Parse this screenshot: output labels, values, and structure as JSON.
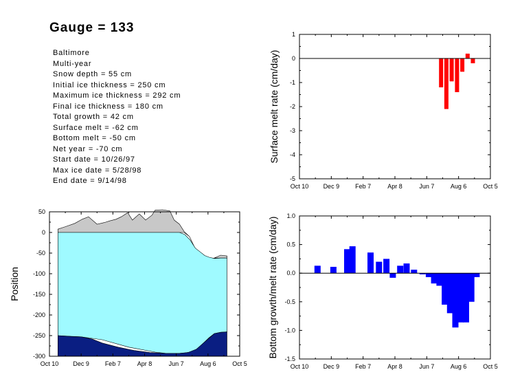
{
  "title": "Gauge = 133",
  "info": [
    "Baltimore",
    "Multi-year",
    "Snow depth = 55 cm",
    "Initial ice thickness = 250 cm",
    "Maximum ice thickness = 292 cm",
    "Final ice thickness = 180 cm",
    "Total growth = 42 cm",
    "Surface melt = -62 cm",
    "Bottom melt = -50 cm",
    "Net year = -70 cm",
    "Start date = 10/26/97",
    "Max ice date = 5/28/98",
    "End date = 9/14/98"
  ],
  "chart_data": [
    {
      "id": "surface-melt",
      "type": "bar",
      "xlabel": "",
      "ylabel": "Surface melt rate (cm/day)",
      "xlim": [
        0,
        360
      ],
      "ylim": [
        -5,
        1
      ],
      "yticks": [
        1,
        0,
        -1,
        -2,
        -3,
        -4,
        -5
      ],
      "xtick_labels": [
        "Oct 10",
        "Dec 9",
        "Feb 7",
        "Apr 8",
        "Jun 7",
        "Aug 6",
        "Oct 5"
      ],
      "xtick_values": [
        0,
        60,
        120,
        180,
        240,
        300,
        360
      ],
      "bar_color": "#ff0000",
      "zero_line": true,
      "x": [
        267,
        277,
        287,
        297,
        307,
        317,
        327
      ],
      "values": [
        -1.2,
        -2.1,
        -0.95,
        -1.4,
        -0.55,
        0.2,
        -0.2
      ]
    },
    {
      "id": "ice-position",
      "type": "area",
      "xlabel": "",
      "ylabel": "Position",
      "xlim": [
        0,
        360
      ],
      "ylim": [
        -300,
        50
      ],
      "yticks": [
        50,
        0,
        -50,
        -100,
        -150,
        -200,
        -250,
        -300
      ],
      "xtick_labels": [
        "Oct 10",
        "Dec 9",
        "Feb 7",
        "Apr 8",
        "Jun 7",
        "Aug 6",
        "Oct 5"
      ],
      "xtick_values": [
        0,
        60,
        120,
        180,
        240,
        300,
        360
      ],
      "series": [
        {
          "kind": "snow",
          "color": "#c8c8c8",
          "x": [
            16,
            30,
            48,
            62,
            74,
            90,
            104,
            114,
            126,
            136,
            148,
            157,
            170,
            182,
            194,
            200,
            214,
            228,
            236,
            246,
            255,
            265,
            276,
            284,
            292,
            302,
            312,
            324,
            336
          ],
          "top": [
            8,
            14,
            22,
            32,
            38,
            20,
            24,
            28,
            32,
            38,
            48,
            30,
            45,
            30,
            42,
            54,
            55,
            52,
            30,
            20,
            2,
            -10,
            -40,
            -55,
            -60,
            -63,
            -62,
            -55,
            -57
          ],
          "bottom": [
            0,
            0,
            0,
            0,
            0,
            0,
            0,
            0,
            0,
            0,
            0,
            0,
            0,
            0,
            0,
            0,
            0,
            0,
            0,
            0,
            0,
            -10,
            -40,
            -55,
            -60,
            -63,
            -62,
            -62,
            -62
          ]
        },
        {
          "kind": "ice",
          "color": "#9ffaff",
          "x": [
            16,
            60,
            100,
            150,
            200,
            220,
            246,
            256,
            266,
            276,
            286,
            294,
            302,
            312,
            324,
            336
          ],
          "top": [
            0,
            0,
            0,
            0,
            0,
            0,
            0,
            -5,
            -18,
            -38,
            -48,
            -56,
            -60,
            -63,
            -62,
            -62
          ],
          "bottom": [
            -250,
            -253,
            -260,
            -278,
            -290,
            -293,
            -293,
            -292,
            -290,
            -285,
            -275,
            -265,
            -255,
            -245,
            -242,
            -241
          ]
        },
        {
          "kind": "bottom-ice",
          "color": "#0a1e82",
          "x": [
            16,
            40,
            60,
            80,
            100,
            130,
            160,
            190,
            220,
            246,
            262,
            278,
            294,
            312,
            324,
            336
          ],
          "top": [
            -250,
            -252,
            -253,
            -258,
            -268,
            -278,
            -286,
            -291,
            -293,
            -293,
            -291,
            -283,
            -265,
            -245,
            -242,
            -241
          ],
          "bottom": [
            -300,
            -300,
            -300,
            -300,
            -300,
            -300,
            -300,
            -300,
            -300,
            -300,
            -300,
            -300,
            -300,
            -300,
            -300,
            -300
          ]
        }
      ]
    },
    {
      "id": "bottom-growth",
      "type": "bar",
      "xlabel": "",
      "ylabel": "Bottom growth/melt rate (cm/day)",
      "xlim": [
        0,
        360
      ],
      "ylim": [
        -1.5,
        1
      ],
      "yticks": [
        1.0,
        0.5,
        0.0,
        -0.5,
        -1.0,
        -1.5
      ],
      "ytick_labels": [
        "1.0",
        "0.5",
        "0.0",
        "-0.5",
        "-1.0",
        "-1.5"
      ],
      "xtick_labels": [
        "Oct 10",
        "Dec 9",
        "Feb 7",
        "Apr 8",
        "Jun 7",
        "Aug 6",
        "Oct 5"
      ],
      "xtick_values": [
        0,
        60,
        120,
        180,
        240,
        300,
        360
      ],
      "bar_color": "#0000ff",
      "zero_line": true,
      "x": [
        34,
        64,
        90,
        100,
        134,
        150,
        164,
        176,
        190,
        202,
        216,
        232,
        244,
        254,
        264,
        274,
        284,
        294,
        304,
        314,
        324,
        334
      ],
      "values": [
        0.13,
        0.11,
        0.42,
        0.47,
        0.36,
        0.2,
        0.25,
        -0.08,
        0.13,
        0.17,
        0.06,
        -0.02,
        -0.07,
        -0.18,
        -0.22,
        -0.55,
        -0.7,
        -0.95,
        -0.86,
        -0.86,
        -0.5,
        -0.07
      ]
    }
  ]
}
